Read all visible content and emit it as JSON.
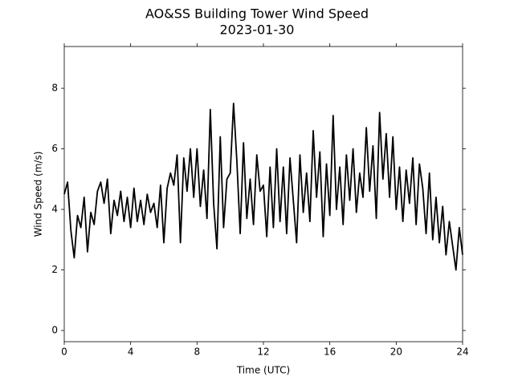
{
  "chart_data": {
    "type": "line",
    "title": "AO&SS Building Tower Wind Speed",
    "subtitle": "2023-01-30",
    "x_label": "Time (UTC)",
    "y_label": "Wind Speed (m/s)",
    "xlim": [
      0,
      24
    ],
    "xticks": [
      0,
      4,
      8,
      12,
      16,
      20,
      24
    ],
    "ylim": [
      -0.37,
      9.38
    ],
    "yticks": [
      0,
      2,
      4,
      6,
      8
    ],
    "grid": false,
    "x": [
      0,
      0.2,
      0.4,
      0.6,
      0.8,
      1,
      1.2,
      1.4,
      1.6,
      1.8,
      2,
      2.2,
      2.4,
      2.6,
      2.8,
      3,
      3.2,
      3.4,
      3.6,
      3.8,
      4,
      4.2,
      4.4,
      4.6,
      4.8,
      5,
      5.2,
      5.4,
      5.6,
      5.8,
      6,
      6.2,
      6.4,
      6.6,
      6.8,
      7,
      7.2,
      7.4,
      7.6,
      7.8,
      8,
      8.2,
      8.4,
      8.6,
      8.8,
      9,
      9.2,
      9.4,
      9.6,
      9.8,
      10,
      10.2,
      10.4,
      10.6,
      10.8,
      11,
      11.2,
      11.4,
      11.6,
      11.8,
      12,
      12.2,
      12.4,
      12.6,
      12.8,
      13,
      13.2,
      13.4,
      13.6,
      13.8,
      14,
      14.2,
      14.4,
      14.6,
      14.8,
      15,
      15.2,
      15.4,
      15.6,
      15.8,
      16,
      16.2,
      16.4,
      16.6,
      16.8,
      17,
      17.2,
      17.4,
      17.6,
      17.8,
      18,
      18.2,
      18.4,
      18.6,
      18.8,
      19,
      19.2,
      19.4,
      19.6,
      19.8,
      20,
      20.2,
      20.4,
      20.6,
      20.8,
      21,
      21.2,
      21.4,
      21.6,
      21.8,
      22,
      22.2,
      22.4,
      22.6,
      22.8,
      23,
      23.2,
      23.4,
      23.6,
      23.8,
      24
    ],
    "series": [
      {
        "name": "Wind Speed",
        "color": "#000000",
        "values": [
          4.5,
          4.9,
          3.3,
          2.4,
          3.8,
          3.4,
          4.4,
          2.6,
          3.9,
          3.5,
          4.6,
          4.9,
          4.2,
          5.0,
          3.2,
          4.3,
          3.8,
          4.6,
          3.6,
          4.4,
          3.4,
          4.7,
          3.6,
          4.3,
          3.5,
          4.5,
          3.9,
          4.2,
          3.4,
          4.8,
          2.9,
          4.7,
          5.2,
          4.8,
          5.8,
          2.9,
          5.7,
          4.6,
          6.0,
          4.4,
          6.0,
          4.1,
          5.3,
          3.7,
          7.3,
          4.2,
          2.7,
          6.4,
          3.4,
          5.0,
          5.2,
          7.5,
          5.6,
          3.2,
          6.2,
          3.7,
          5.0,
          3.5,
          5.8,
          4.6,
          4.8,
          3.1,
          5.4,
          3.4,
          6.0,
          3.6,
          5.4,
          3.2,
          5.7,
          4.3,
          2.9,
          5.8,
          3.9,
          5.2,
          3.6,
          6.6,
          4.4,
          5.9,
          3.1,
          5.5,
          3.8,
          7.1,
          4.0,
          5.4,
          3.5,
          5.8,
          4.3,
          6.0,
          3.9,
          5.2,
          4.4,
          6.7,
          4.6,
          6.1,
          3.7,
          7.2,
          5.0,
          6.5,
          4.4,
          6.4,
          4.0,
          5.4,
          3.6,
          5.3,
          4.2,
          5.7,
          3.5,
          5.5,
          4.7,
          3.2,
          5.2,
          3.0,
          4.4,
          2.9,
          4.1,
          2.5,
          3.6,
          2.8,
          2.0,
          3.4,
          2.5
        ]
      }
    ]
  }
}
